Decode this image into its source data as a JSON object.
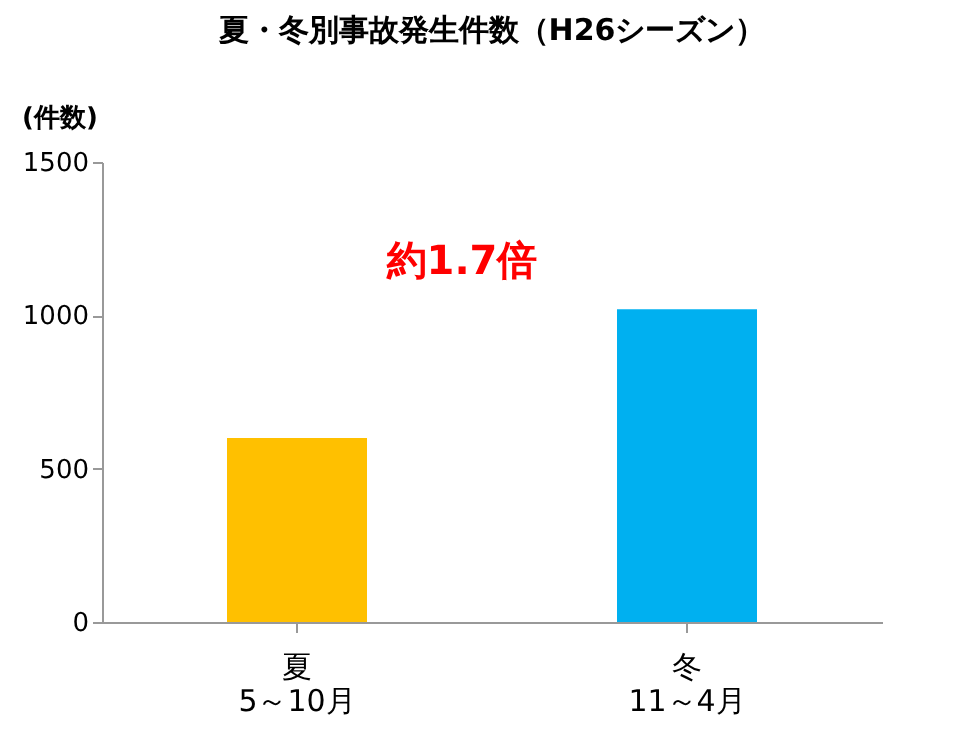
{
  "chart_data": {
    "type": "bar",
    "title": "夏・冬別事故発生件数（H26シーズン）",
    "ylabel": "(件数)",
    "categories": [
      "夏\n5～10月",
      "冬\n11～4月"
    ],
    "values": [
      600,
      1020
    ],
    "colors": [
      "#ffc000",
      "#00b0f0"
    ],
    "ylim": [
      0,
      1500
    ],
    "yticks": [
      0,
      500,
      1000,
      1500
    ],
    "grid": false,
    "annotations": [
      "約1.7倍"
    ]
  }
}
